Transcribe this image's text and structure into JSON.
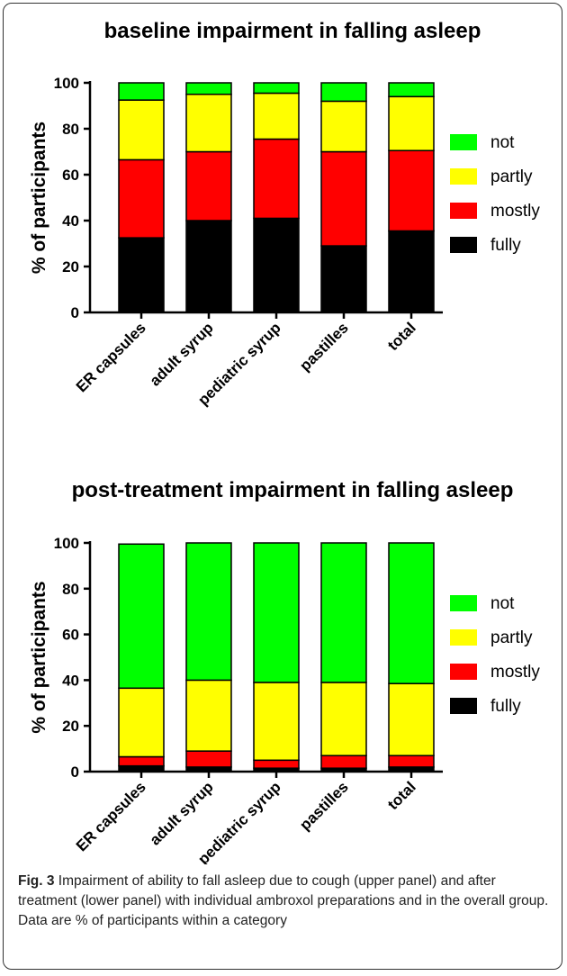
{
  "chart_data": [
    {
      "type": "bar",
      "stacked": true,
      "title": "baseline impairment in falling asleep",
      "y_label": "% of participants",
      "categories": [
        "ER capsules",
        "adult syrup",
        "pediatric syrup",
        "pastilles",
        "total"
      ],
      "series": [
        {
          "name": "fully",
          "color": "#000000",
          "values": [
            32.5,
            40,
            41,
            29,
            35.5
          ]
        },
        {
          "name": "mostly",
          "color": "#ff0000",
          "values": [
            34,
            30,
            34.5,
            41,
            35
          ]
        },
        {
          "name": "partly",
          "color": "#ffff00",
          "values": [
            26,
            25,
            20,
            22,
            23.5
          ]
        },
        {
          "name": "not",
          "color": "#00ff00",
          "values": [
            7.5,
            5,
            4.5,
            8,
            6
          ]
        }
      ],
      "ylim": [
        0,
        100
      ],
      "yticks": [
        0,
        20,
        40,
        60,
        80,
        100
      ],
      "legend": "right"
    },
    {
      "type": "bar",
      "stacked": true,
      "title": "post-treatment impairment in falling asleep",
      "y_label": "% of participants",
      "categories": [
        "ER capsules",
        "adult syrup",
        "pediatric syrup",
        "pastilles",
        "total"
      ],
      "series": [
        {
          "name": "fully",
          "color": "#000000",
          "values": [
            2.5,
            2,
            1.5,
            1.5,
            2
          ]
        },
        {
          "name": "mostly",
          "color": "#ff0000",
          "values": [
            4,
            7,
            3.5,
            5.5,
            5
          ]
        },
        {
          "name": "partly",
          "color": "#ffff00",
          "values": [
            30,
            31,
            34,
            32,
            31.5
          ]
        },
        {
          "name": "not",
          "color": "#00ff00",
          "values": [
            63,
            60,
            61,
            61,
            61.5
          ]
        }
      ],
      "ylim": [
        0,
        100
      ],
      "yticks": [
        0,
        20,
        40,
        60,
        80,
        100
      ],
      "legend": "right"
    }
  ],
  "caption": {
    "label": "Fig. 3",
    "text": "Impairment of ability to fall asleep due to cough (upper panel) and after treatment (lower panel) with individual ambroxol preparations and in the overall group. Data are % of participants within a category"
  }
}
